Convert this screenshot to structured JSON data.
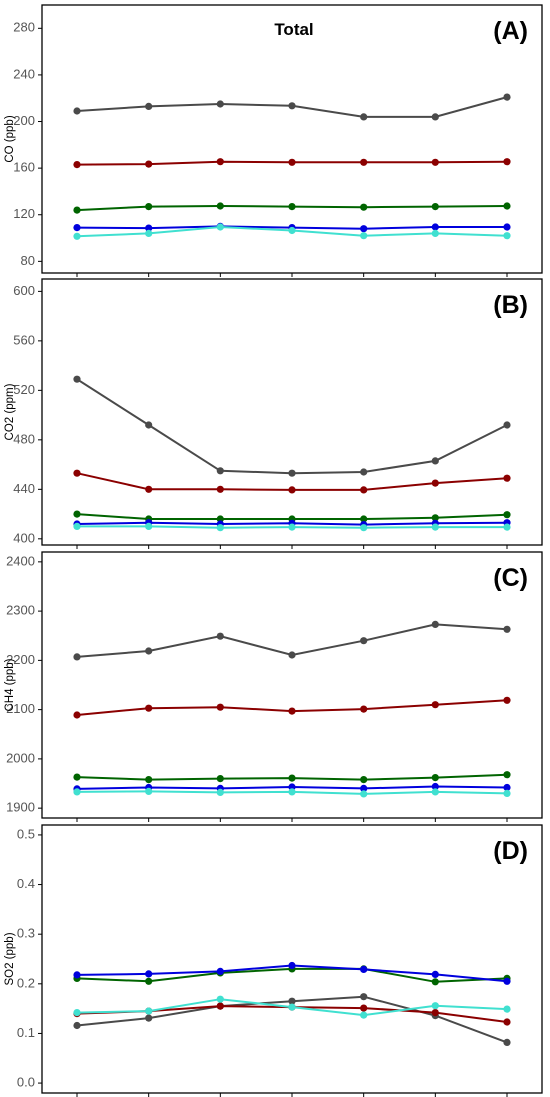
{
  "figure_title": "Total",
  "chart_data": [
    {
      "type": "line",
      "panel_label": "(A)",
      "ylabel": "CO (ppb)",
      "ylim": [
        70,
        300
      ],
      "yticks": [
        80,
        120,
        160,
        200,
        240,
        280
      ],
      "x": [
        1,
        2,
        3,
        4,
        5,
        6,
        7
      ],
      "series": [
        {
          "color": "#4a4a4a",
          "values": [
            209,
            213,
            215,
            213.5,
            204,
            204,
            221
          ]
        },
        {
          "color": "#8b0000",
          "values": [
            163,
            163.5,
            165.5,
            165,
            165,
            165,
            165.5
          ]
        },
        {
          "color": "#006400",
          "values": [
            124,
            127,
            127.5,
            127,
            126.5,
            127,
            127.5
          ]
        },
        {
          "color": "#0000dd",
          "values": [
            109,
            108.5,
            110,
            109,
            108,
            109.5,
            109.5
          ]
        },
        {
          "color": "#40e0d0",
          "values": [
            101.5,
            104,
            109.5,
            106.5,
            102,
            104,
            102
          ]
        }
      ]
    },
    {
      "type": "line",
      "panel_label": "(B)",
      "ylabel": "CO2 (ppm)",
      "ylim": [
        395,
        610
      ],
      "yticks": [
        400,
        440,
        480,
        520,
        560,
        600
      ],
      "x": [
        1,
        2,
        3,
        4,
        5,
        6,
        7
      ],
      "series": [
        {
          "color": "#4a4a4a",
          "values": [
            529,
            492,
            455,
            453,
            454,
            463,
            492
          ]
        },
        {
          "color": "#8b0000",
          "values": [
            453,
            440,
            440,
            439.5,
            439.5,
            445,
            449
          ]
        },
        {
          "color": "#006400",
          "values": [
            420,
            416,
            416,
            416,
            416,
            417,
            419.5
          ]
        },
        {
          "color": "#0000dd",
          "values": [
            412,
            413,
            412,
            412.5,
            411.5,
            412.5,
            413
          ]
        },
        {
          "color": "#40e0d0",
          "values": [
            410,
            410,
            409,
            409.5,
            409,
            409.5,
            409.5
          ]
        }
      ]
    },
    {
      "type": "line",
      "panel_label": "(C)",
      "ylabel": "CH4 (ppb)",
      "ylim": [
        1880,
        2420
      ],
      "yticks": [
        1900,
        2000,
        2100,
        2200,
        2300,
        2400
      ],
      "x": [
        1,
        2,
        3,
        4,
        5,
        6,
        7
      ],
      "series": [
        {
          "color": "#4a4a4a",
          "values": [
            2207,
            2219,
            2249,
            2211,
            2240,
            2273,
            2263
          ]
        },
        {
          "color": "#8b0000",
          "values": [
            2089,
            2103,
            2105,
            2097,
            2101,
            2110,
            2119
          ]
        },
        {
          "color": "#006400",
          "values": [
            1963,
            1958,
            1960,
            1961,
            1958,
            1962,
            1968
          ]
        },
        {
          "color": "#0000dd",
          "values": [
            1939,
            1942,
            1940,
            1943,
            1940,
            1944,
            1942
          ]
        },
        {
          "color": "#40e0d0",
          "values": [
            1933,
            1934,
            1932,
            1933,
            1929,
            1933,
            1930
          ]
        }
      ]
    },
    {
      "type": "line",
      "panel_label": "(D)",
      "ylabel": "SO2 (ppb)",
      "ylim": [
        -0.02,
        0.52
      ],
      "yticks": [
        0.0,
        0.1,
        0.2,
        0.3,
        0.4,
        0.5
      ],
      "ytick_labels": [
        "0.0",
        "0.1",
        "0.2",
        "0.3",
        "0.4",
        "0.5"
      ],
      "x": [
        1,
        2,
        3,
        4,
        5,
        6,
        7
      ],
      "series": [
        {
          "color": "#4a4a4a",
          "values": [
            0.116,
            0.131,
            0.155,
            0.165,
            0.174,
            0.136,
            0.082
          ]
        },
        {
          "color": "#8b0000",
          "values": [
            0.14,
            0.145,
            0.155,
            0.153,
            0.151,
            0.142,
            0.123
          ]
        },
        {
          "color": "#006400",
          "values": [
            0.211,
            0.205,
            0.222,
            0.23,
            0.23,
            0.204,
            0.211
          ]
        },
        {
          "color": "#0000dd",
          "values": [
            0.218,
            0.22,
            0.225,
            0.237,
            0.229,
            0.219,
            0.205
          ]
        },
        {
          "color": "#40e0d0",
          "values": [
            0.142,
            0.145,
            0.169,
            0.153,
            0.137,
            0.156,
            0.149
          ]
        }
      ]
    }
  ]
}
